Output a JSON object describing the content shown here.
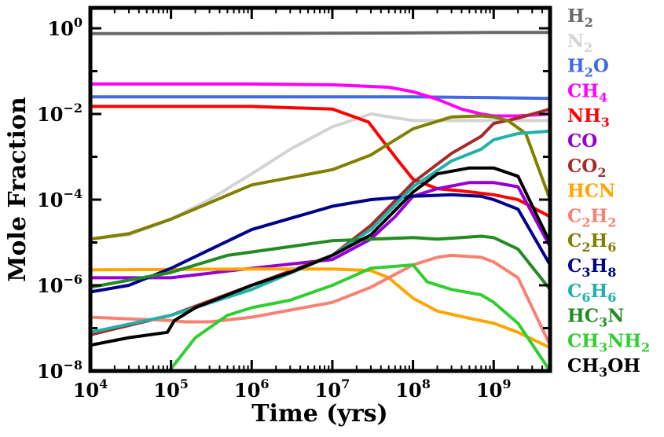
{
  "chart_data": {
    "type": "line",
    "title": "",
    "xlabel": "Time (yrs)",
    "ylabel": "Mole Fraction",
    "xscale": "log",
    "yscale": "log",
    "xlim": [
      10000,
      5000000000
    ],
    "ylim": [
      1e-08,
      3
    ],
    "x_ticks": [
      {
        "base": "10",
        "exp": "4",
        "value": 10000
      },
      {
        "base": "10",
        "exp": "5",
        "value": 100000
      },
      {
        "base": "10",
        "exp": "6",
        "value": 1000000
      },
      {
        "base": "10",
        "exp": "7",
        "value": 10000000
      },
      {
        "base": "10",
        "exp": "8",
        "value": 100000000
      },
      {
        "base": "10",
        "exp": "9",
        "value": 1000000000
      }
    ],
    "y_ticks": [
      {
        "base": "10",
        "exp": "0",
        "value": 1
      },
      {
        "base": "10",
        "exp": "−2",
        "value": 0.01
      },
      {
        "base": "10",
        "exp": "−4",
        "value": 0.0001
      },
      {
        "base": "10",
        "exp": "−6",
        "value": 1e-06
      },
      {
        "base": "10",
        "exp": "−8",
        "value": 1e-08
      }
    ],
    "legend_position": "right-outside",
    "series": [
      {
        "name": "H2",
        "label": {
          "main": "H",
          "sub": "2",
          "rest": ""
        },
        "color": "#696969",
        "x": [
          10000,
          100000,
          1000000,
          10000000,
          100000000,
          1000000000,
          5000000000
        ],
        "y": [
          0.75,
          0.75,
          0.76,
          0.77,
          0.78,
          0.8,
          0.8
        ]
      },
      {
        "name": "N2",
        "label": {
          "main": "N",
          "sub": "2",
          "rest": ""
        },
        "color": "#d3d3d3",
        "x": [
          10000,
          30000,
          100000,
          300000,
          1000000,
          3000000,
          10000000,
          30000000,
          100000000,
          300000000,
          1000000000,
          5000000000
        ],
        "y": [
          1.2e-05,
          1.5e-05,
          3.5e-05,
          0.0001,
          0.0004,
          0.0015,
          0.005,
          0.01,
          0.007,
          0.007,
          0.007,
          0.007
        ]
      },
      {
        "name": "H2O",
        "label": {
          "main": "H",
          "sub": "2",
          "rest": "O"
        },
        "color": "#4169e1",
        "x": [
          10000,
          1000000,
          100000000,
          1000000000,
          5000000000
        ],
        "y": [
          0.025,
          0.025,
          0.025,
          0.024,
          0.023
        ]
      },
      {
        "name": "CH4",
        "label": {
          "main": "CH",
          "sub": "4",
          "rest": ""
        },
        "color": "#ff00ff",
        "x": [
          10000,
          1000000,
          10000000,
          50000000,
          100000000,
          200000000,
          400000000,
          700000000,
          1000000000,
          2000000000,
          5000000000
        ],
        "y": [
          0.05,
          0.05,
          0.048,
          0.042,
          0.033,
          0.022,
          0.013,
          0.01,
          0.009,
          0.009,
          0.01
        ]
      },
      {
        "name": "NH3",
        "label": {
          "main": "NH",
          "sub": "3",
          "rest": ""
        },
        "color": "#ff0000",
        "x": [
          10000,
          1000000,
          10000000,
          28000000,
          60000000,
          100000000,
          200000000,
          400000000,
          1000000000,
          2000000000,
          5000000000
        ],
        "y": [
          0.015,
          0.015,
          0.013,
          0.0065,
          0.001,
          0.0003,
          0.00018,
          0.00016,
          0.00013,
          0.0001,
          4e-05
        ]
      },
      {
        "name": "CO",
        "label": {
          "main": "CO",
          "sub": "",
          "rest": ""
        },
        "color": "#9400d3",
        "x": [
          10000,
          100000,
          1000000,
          10000000,
          30000000,
          60000000,
          100000000,
          200000000,
          500000000,
          1000000000,
          2000000000,
          5000000000
        ],
        "y": [
          1.5e-06,
          1.5e-06,
          2.5e-06,
          4e-06,
          1.2e-05,
          4e-05,
          0.00012,
          0.00018,
          0.00025,
          0.00025,
          0.0002,
          8e-06
        ]
      },
      {
        "name": "CO2",
        "label": {
          "main": "CO",
          "sub": "2",
          "rest": ""
        },
        "color": "#a52a2a",
        "x": [
          10000,
          100000,
          1000000,
          10000000,
          30000000,
          100000000,
          300000000,
          700000000,
          1000000000,
          2000000000,
          5000000000
        ],
        "y": [
          7e-08,
          2e-07,
          1e-06,
          5e-06,
          2.5e-05,
          0.00025,
          0.0012,
          0.003,
          0.006,
          0.008,
          0.013
        ]
      },
      {
        "name": "HCN",
        "label": {
          "main": "HCN",
          "sub": "",
          "rest": ""
        },
        "color": "#ffa500",
        "x": [
          10000,
          1000000,
          10000000,
          30000000,
          50000000,
          100000000,
          200000000,
          500000000,
          1000000000,
          2000000000,
          5000000000
        ],
        "y": [
          2.3e-06,
          2.4e-06,
          2.4e-06,
          2.2e-06,
          1.5e-06,
          5e-07,
          2.5e-07,
          1.7e-07,
          1.3e-07,
          8e-08,
          3.5e-08
        ]
      },
      {
        "name": "C2H2",
        "label": {
          "main": "C",
          "sub": "2",
          "rest": "H",
          "sub2": "2"
        },
        "color": "#fa8072",
        "x": [
          10000,
          100000,
          150000,
          300000,
          1000000,
          10000000,
          30000000,
          100000000,
          200000000,
          300000000,
          700000000,
          1000000000,
          2000000000,
          5000000000
        ],
        "y": [
          1.8e-07,
          1.5e-07,
          1.4e-07,
          1.4e-07,
          1.8e-07,
          4e-07,
          9e-07,
          3e-06,
          4.5e-06,
          5e-06,
          4.5e-06,
          3.5e-06,
          1.5e-06,
          4e-08
        ]
      },
      {
        "name": "C2H6",
        "label": {
          "main": "C",
          "sub": "2",
          "rest": "H",
          "sub2": "6"
        },
        "color": "#808000",
        "x": [
          10000,
          30000,
          100000,
          1000000,
          10000000,
          30000000,
          100000000,
          300000000,
          700000000,
          1000000000,
          1500000000,
          2500000000,
          5000000000
        ],
        "y": [
          1.2e-05,
          1.6e-05,
          3.5e-05,
          0.00022,
          0.0005,
          0.0011,
          0.0045,
          0.0085,
          0.009,
          0.0085,
          0.007,
          0.0035,
          0.0001
        ]
      },
      {
        "name": "C3H8",
        "label": {
          "main": "C",
          "sub": "3",
          "rest": "H",
          "sub2": "8"
        },
        "color": "#00008b",
        "x": [
          10000,
          30000,
          100000,
          1000000,
          10000000,
          30000000,
          100000000,
          300000000,
          700000000,
          1000000000,
          2000000000,
          5000000000
        ],
        "y": [
          7e-07,
          1e-06,
          2.5e-06,
          2e-05,
          7e-05,
          0.0001,
          0.00012,
          0.00013,
          0.00012,
          0.0001,
          6e-05,
          3e-06
        ]
      },
      {
        "name": "C6H6",
        "label": {
          "main": "C",
          "sub": "6",
          "rest": "H",
          "sub2": "6"
        },
        "color": "#20b2aa",
        "x": [
          10000,
          100000,
          1000000,
          10000000,
          30000000,
          100000000,
          300000000,
          700000000,
          1000000000,
          2000000000,
          5000000000
        ],
        "y": [
          8e-08,
          2e-07,
          8e-07,
          5e-06,
          2e-05,
          0.0002,
          0.0008,
          0.0015,
          0.0025,
          0.0035,
          0.004
        ]
      },
      {
        "name": "HC3N",
        "label": {
          "main": "HC",
          "sub": "3",
          "rest": "N"
        },
        "color": "#228b22",
        "x": [
          10000,
          100000,
          500000,
          1000000,
          10000000,
          100000000,
          200000000,
          400000000,
          700000000,
          1000000000,
          2000000000,
          5000000000
        ],
        "y": [
          9e-07,
          2e-06,
          5e-06,
          6e-06,
          1.1e-05,
          1.3e-05,
          1.2e-05,
          1.3e-05,
          1.4e-05,
          1.3e-05,
          7e-06,
          8e-07
        ]
      },
      {
        "name": "CH3NH2",
        "label": {
          "main": "CH",
          "sub": "3",
          "rest": "NH",
          "sub2": "2"
        },
        "color": "#32cd32",
        "x": [
          95000,
          200000,
          500000,
          1000000,
          3000000,
          10000000,
          30000000,
          100000000,
          150000000,
          300000000,
          700000000,
          1000000000,
          2000000000,
          5000000000
        ],
        "y": [
          1e-08,
          6e-08,
          2e-07,
          3e-07,
          4.5e-07,
          1e-06,
          2.5e-06,
          3e-06,
          1.2e-06,
          8e-07,
          6e-07,
          4e-07,
          1.3e-07,
          1e-08
        ]
      },
      {
        "name": "CH3OH",
        "label": {
          "main": "CH",
          "sub": "3",
          "rest": "OH"
        },
        "color": "#000000",
        "x": [
          10000,
          30000,
          90000,
          110000,
          200000,
          1000000,
          3000000,
          10000000,
          30000000,
          100000000,
          200000000,
          500000000,
          1000000000,
          2000000000,
          5000000000
        ],
        "y": [
          4e-08,
          6e-08,
          8e-08,
          1.5e-07,
          3e-07,
          1e-06,
          2e-06,
          5e-06,
          1.5e-05,
          0.00015,
          0.0004,
          0.00055,
          0.00055,
          0.00035,
          1e-05
        ]
      }
    ]
  }
}
